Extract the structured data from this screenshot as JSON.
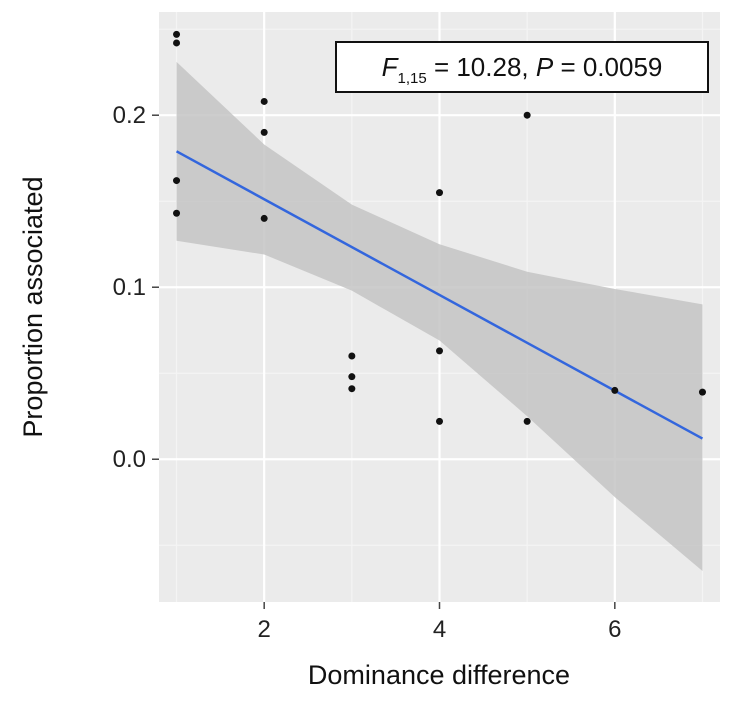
{
  "chart_data": {
    "type": "scatter",
    "xlabel": "Dominance difference",
    "ylabel": "Proportion associated",
    "xlim": [
      0.8,
      7.2
    ],
    "ylim": [
      -0.083,
      0.26
    ],
    "x_ticks": [
      2,
      4,
      6
    ],
    "x_tick_labels": [
      "2",
      "4",
      "6"
    ],
    "y_ticks": [
      0.0,
      0.1,
      0.2
    ],
    "y_tick_labels": [
      "0.0",
      "0.1",
      "0.2"
    ],
    "grid": true,
    "annotation": {
      "parts": [
        "F",
        "1,15",
        " = 10.28, ",
        "P",
        " = 0.0059"
      ],
      "position": "top-right"
    },
    "points": [
      {
        "x": 1,
        "y": 0.247
      },
      {
        "x": 1,
        "y": 0.242
      },
      {
        "x": 1,
        "y": 0.162
      },
      {
        "x": 1,
        "y": 0.143
      },
      {
        "x": 2,
        "y": 0.208
      },
      {
        "x": 2,
        "y": 0.19
      },
      {
        "x": 2,
        "y": 0.14
      },
      {
        "x": 3,
        "y": 0.06
      },
      {
        "x": 3,
        "y": 0.048
      },
      {
        "x": 3,
        "y": 0.041
      },
      {
        "x": 4,
        "y": 0.155
      },
      {
        "x": 4,
        "y": 0.063
      },
      {
        "x": 4,
        "y": 0.022
      },
      {
        "x": 5,
        "y": 0.2
      },
      {
        "x": 5,
        "y": 0.022
      },
      {
        "x": 6,
        "y": 0.04
      },
      {
        "x": 7,
        "y": 0.039
      }
    ],
    "fit_line": {
      "x": [
        1,
        7
      ],
      "y": [
        0.179,
        0.012
      ]
    },
    "confidence_band": {
      "x": [
        1,
        2,
        3,
        4,
        5,
        6,
        7
      ],
      "upper": [
        0.231,
        0.183,
        0.148,
        0.125,
        0.109,
        0.099,
        0.09
      ],
      "lower": [
        0.127,
        0.119,
        0.098,
        0.069,
        0.025,
        -0.022,
        -0.065
      ]
    },
    "colors": {
      "panel": "#ebebeb",
      "grid_major": "#ffffff",
      "grid_minor": "#f4f4f4",
      "band": "#c4c4c4",
      "line": "#3366dd",
      "point": "#111111"
    }
  }
}
